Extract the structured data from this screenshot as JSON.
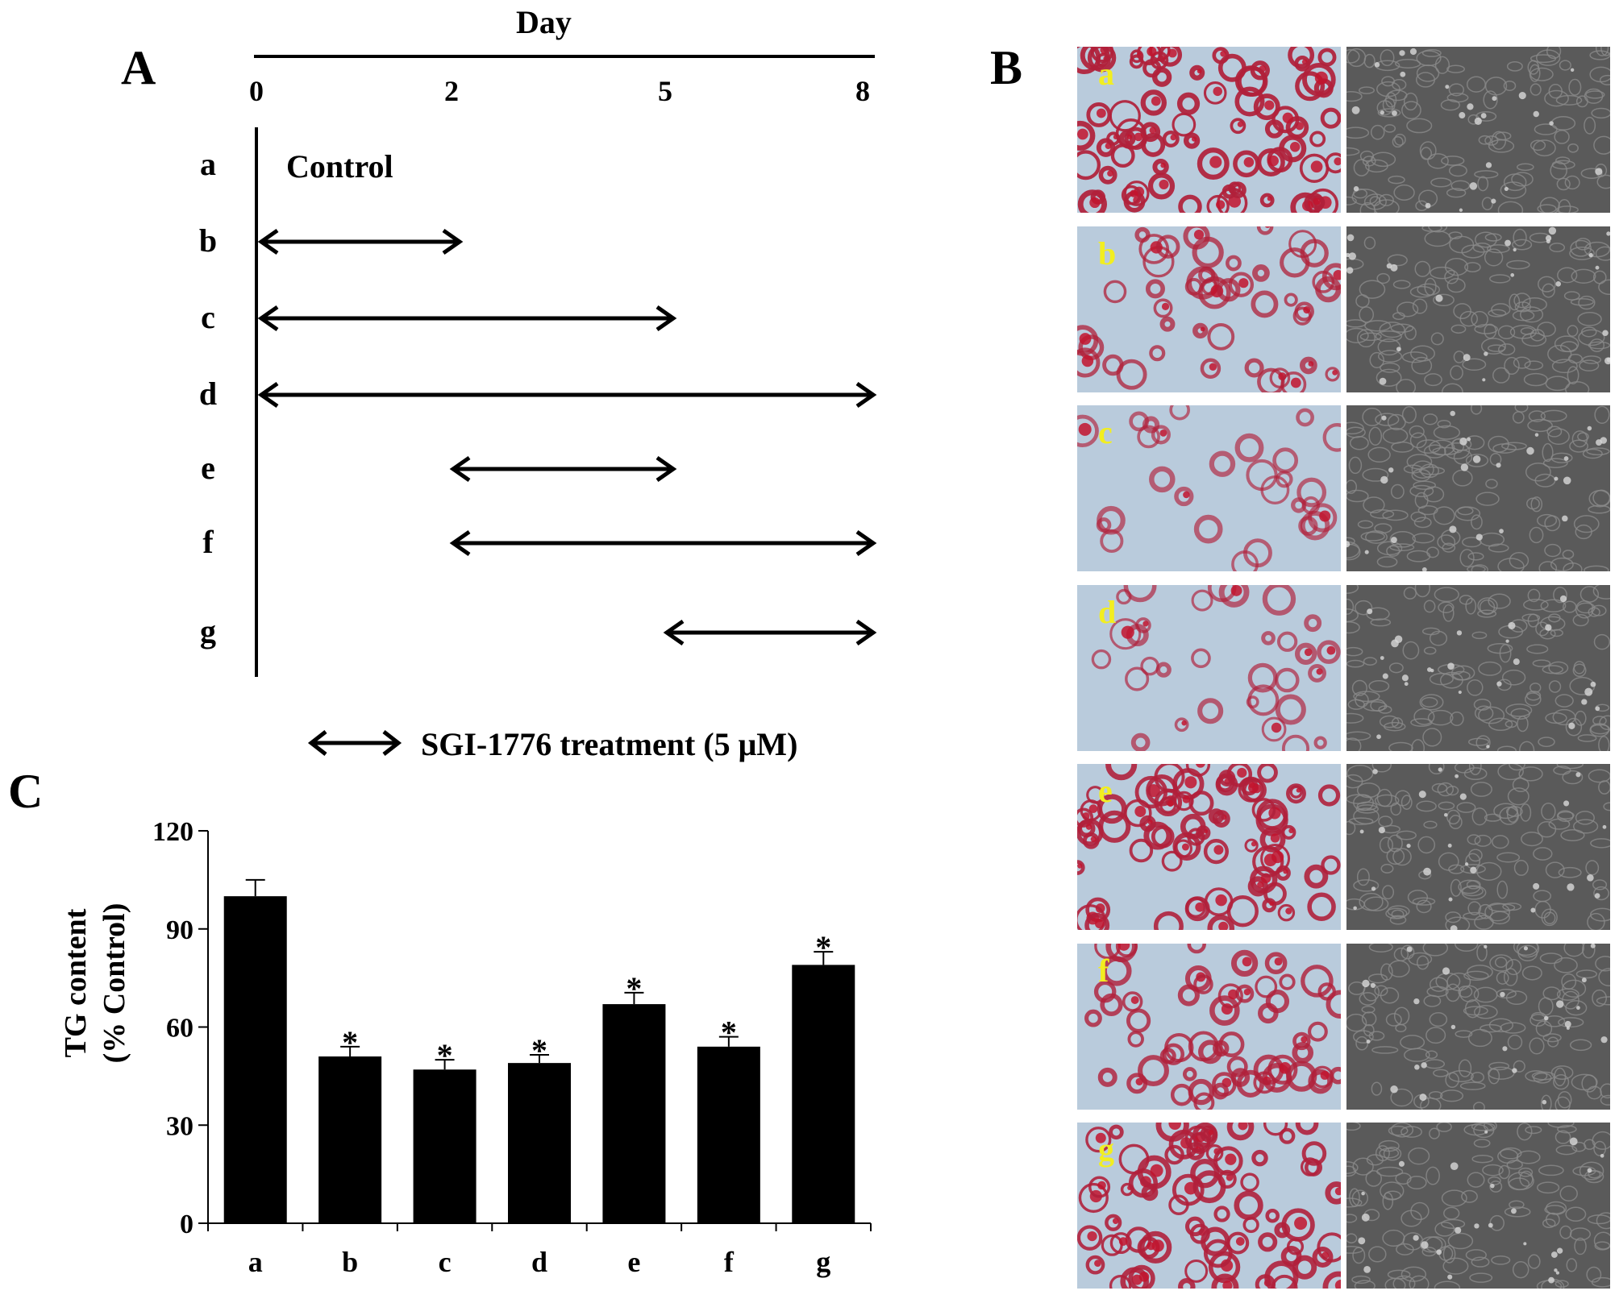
{
  "panels": {
    "A": "A",
    "B": "B",
    "C": "C"
  },
  "timeline": {
    "axis_label": "Day",
    "ticks": [
      "0",
      "2",
      "5",
      "8"
    ],
    "rows": [
      {
        "label": "a",
        "note": "Control"
      },
      {
        "label": "b",
        "start": 0,
        "end": 2
      },
      {
        "label": "c",
        "start": 0,
        "end": 5
      },
      {
        "label": "d",
        "start": 0,
        "end": 8
      },
      {
        "label": "e",
        "start": 2,
        "end": 5
      },
      {
        "label": "f",
        "start": 2,
        "end": 8
      },
      {
        "label": "g",
        "start": 5,
        "end": 8
      }
    ],
    "legend": "SGI-1776 treatment (5 μM)"
  },
  "micrographs": [
    {
      "label": "a",
      "stain_level": 0.95
    },
    {
      "label": "b",
      "stain_level": 0.5
    },
    {
      "label": "c",
      "stain_level": 0.25
    },
    {
      "label": "d",
      "stain_level": 0.3
    },
    {
      "label": "e",
      "stain_level": 0.85
    },
    {
      "label": "f",
      "stain_level": 0.65
    },
    {
      "label": "g",
      "stain_level": 0.85
    }
  ],
  "chart_data": {
    "type": "bar",
    "ylabel_line1": "TG content",
    "ylabel_line2": "(% Control)",
    "categories": [
      "a",
      "b",
      "c",
      "d",
      "e",
      "f",
      "g"
    ],
    "values": [
      100,
      51,
      47,
      49,
      67,
      54,
      79
    ],
    "errors": [
      5,
      3,
      3,
      2.5,
      3.5,
      3,
      4
    ],
    "significance": [
      "",
      "*",
      "*",
      "*",
      "*",
      "*",
      "*"
    ],
    "ylim": [
      0,
      120
    ],
    "yticks": [
      "0",
      "30",
      "60",
      "90",
      "120"
    ],
    "bar_color": "#000000"
  }
}
